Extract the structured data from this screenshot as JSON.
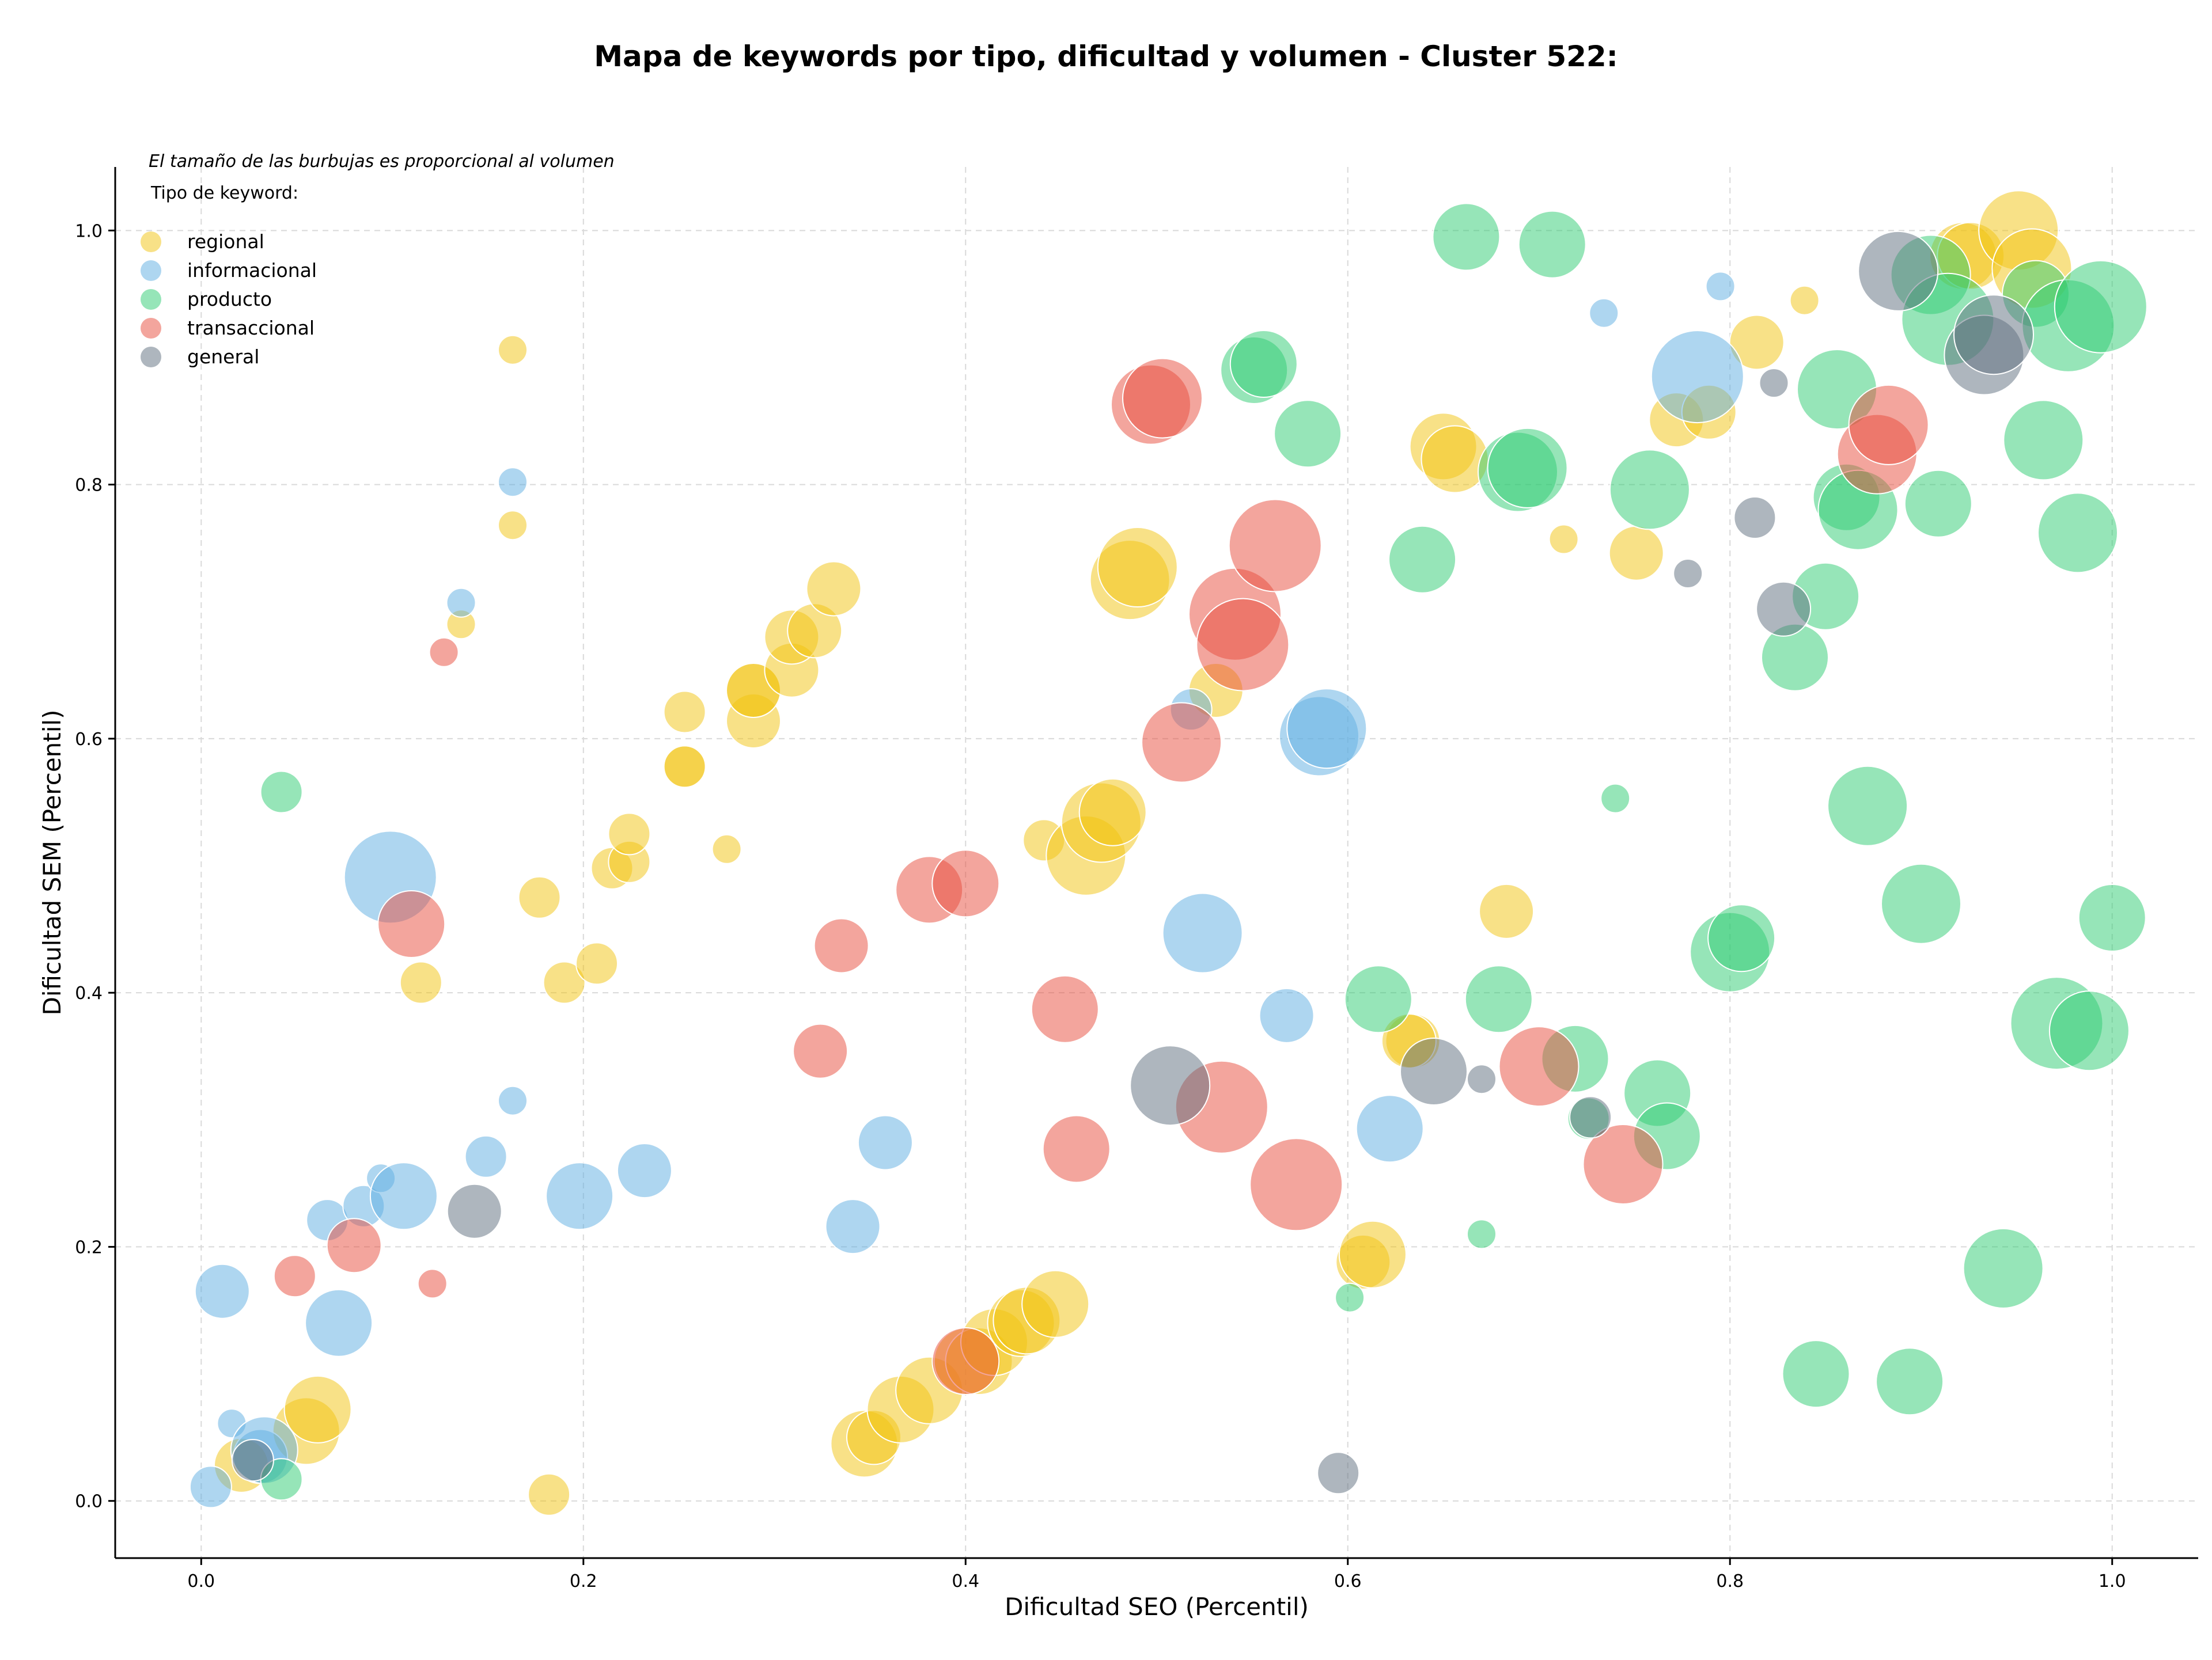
{
  "chart_data": {
    "type": "scatter",
    "title": "Mapa de keywords por tipo, dificultad y volumen - Cluster 522:",
    "xlabel": "Dificultad SEO (Percentil)",
    "ylabel": "Dificultad SEM (Percentil)",
    "xlim": [
      -0.045,
      1.045
    ],
    "ylim": [
      -0.045,
      1.05
    ],
    "xticks": [
      "0.0",
      "0.2",
      "0.4",
      "0.6",
      "0.8",
      "1.0"
    ],
    "yticks": [
      "0.0",
      "0.2",
      "0.4",
      "0.6",
      "0.8",
      "1.0"
    ],
    "grid": true,
    "note": "El tamaño de las burbujas es proporcional al volumen",
    "legend_title": "Tipo de keyword:",
    "legend_position": "top-left",
    "bubble_size_encoding": "volumen",
    "series": [
      {
        "name": "regional",
        "color": "#F1C40F",
        "points": [
          {
            "x": 0.021,
            "y": 0.028,
            "s": 3
          },
          {
            "x": 0.055,
            "y": 0.055,
            "s": 4
          },
          {
            "x": 0.061,
            "y": 0.072,
            "s": 4
          },
          {
            "x": 0.182,
            "y": 0.005,
            "s": 2
          },
          {
            "x": 0.115,
            "y": 0.408,
            "s": 2
          },
          {
            "x": 0.177,
            "y": 0.475,
            "s": 2
          },
          {
            "x": 0.19,
            "y": 0.408,
            "s": 2
          },
          {
            "x": 0.207,
            "y": 0.423,
            "s": 2
          },
          {
            "x": 0.215,
            "y": 0.498,
            "s": 2
          },
          {
            "x": 0.224,
            "y": 0.503,
            "s": 2
          },
          {
            "x": 0.224,
            "y": 0.525,
            "s": 2
          },
          {
            "x": 0.253,
            "y": 0.578,
            "s": 2
          },
          {
            "x": 0.253,
            "y": 0.578,
            "s": 2
          },
          {
            "x": 0.253,
            "y": 0.621,
            "s": 2
          },
          {
            "x": 0.275,
            "y": 0.513,
            "s": 1
          },
          {
            "x": 0.289,
            "y": 0.614,
            "s": 3
          },
          {
            "x": 0.289,
            "y": 0.638,
            "s": 3
          },
          {
            "x": 0.289,
            "y": 0.638,
            "s": 3
          },
          {
            "x": 0.309,
            "y": 0.654,
            "s": 3
          },
          {
            "x": 0.309,
            "y": 0.68,
            "s": 3
          },
          {
            "x": 0.321,
            "y": 0.685,
            "s": 3
          },
          {
            "x": 0.331,
            "y": 0.718,
            "s": 3
          },
          {
            "x": 0.136,
            "y": 0.69,
            "s": 1
          },
          {
            "x": 0.163,
            "y": 0.768,
            "s": 1
          },
          {
            "x": 0.163,
            "y": 0.906,
            "s": 1
          },
          {
            "x": 0.347,
            "y": 0.045,
            "s": 4
          },
          {
            "x": 0.352,
            "y": 0.05,
            "s": 3
          },
          {
            "x": 0.366,
            "y": 0.072,
            "s": 4
          },
          {
            "x": 0.381,
            "y": 0.087,
            "s": 4
          },
          {
            "x": 0.401,
            "y": 0.11,
            "s": 4
          },
          {
            "x": 0.407,
            "y": 0.11,
            "s": 4
          },
          {
            "x": 0.415,
            "y": 0.125,
            "s": 4
          },
          {
            "x": 0.429,
            "y": 0.14,
            "s": 4
          },
          {
            "x": 0.432,
            "y": 0.142,
            "s": 4
          },
          {
            "x": 0.447,
            "y": 0.155,
            "s": 4
          },
          {
            "x": 0.441,
            "y": 0.52,
            "s": 2
          },
          {
            "x": 0.463,
            "y": 0.508,
            "s": 5
          },
          {
            "x": 0.471,
            "y": 0.534,
            "s": 5
          },
          {
            "x": 0.477,
            "y": 0.542,
            "s": 4
          },
          {
            "x": 0.486,
            "y": 0.725,
            "s": 5
          },
          {
            "x": 0.49,
            "y": 0.735,
            "s": 5
          },
          {
            "x": 0.531,
            "y": 0.638,
            "s": 3
          },
          {
            "x": 0.608,
            "y": 0.188,
            "s": 3
          },
          {
            "x": 0.613,
            "y": 0.194,
            "s": 4
          },
          {
            "x": 0.634,
            "y": 0.362,
            "s": 3
          },
          {
            "x": 0.632,
            "y": 0.362,
            "s": 3
          },
          {
            "x": 0.65,
            "y": 0.83,
            "s": 4
          },
          {
            "x": 0.656,
            "y": 0.82,
            "s": 4
          },
          {
            "x": 0.683,
            "y": 0.464,
            "s": 3
          },
          {
            "x": 0.713,
            "y": 0.757,
            "s": 1
          },
          {
            "x": 0.751,
            "y": 0.746,
            "s": 3
          },
          {
            "x": 0.772,
            "y": 0.851,
            "s": 3
          },
          {
            "x": 0.789,
            "y": 0.857,
            "s": 3
          },
          {
            "x": 0.814,
            "y": 0.912,
            "s": 3
          },
          {
            "x": 0.839,
            "y": 0.945,
            "s": 1
          },
          {
            "x": 0.922,
            "y": 0.98,
            "s": 4
          },
          {
            "x": 0.926,
            "y": 0.98,
            "s": 4
          },
          {
            "x": 0.951,
            "y": 1.0,
            "s": 5
          },
          {
            "x": 0.958,
            "y": 0.97,
            "s": 5
          }
        ]
      },
      {
        "name": "informacional",
        "color": "#5DADE2",
        "points": [
          {
            "x": 0.005,
            "y": 0.011,
            "s": 2
          },
          {
            "x": 0.011,
            "y": 0.165,
            "s": 3
          },
          {
            "x": 0.016,
            "y": 0.061,
            "s": 1
          },
          {
            "x": 0.031,
            "y": 0.035,
            "s": 3
          },
          {
            "x": 0.033,
            "y": 0.04,
            "s": 4
          },
          {
            "x": 0.066,
            "y": 0.221,
            "s": 2
          },
          {
            "x": 0.072,
            "y": 0.14,
            "s": 4
          },
          {
            "x": 0.085,
            "y": 0.232,
            "s": 2
          },
          {
            "x": 0.094,
            "y": 0.254,
            "s": 1
          },
          {
            "x": 0.099,
            "y": 0.491,
            "s": 6
          },
          {
            "x": 0.106,
            "y": 0.24,
            "s": 4
          },
          {
            "x": 0.136,
            "y": 0.707,
            "s": 1
          },
          {
            "x": 0.149,
            "y": 0.271,
            "s": 2
          },
          {
            "x": 0.163,
            "y": 0.315,
            "s": 1
          },
          {
            "x": 0.163,
            "y": 0.802,
            "s": 1
          },
          {
            "x": 0.198,
            "y": 0.24,
            "s": 4
          },
          {
            "x": 0.232,
            "y": 0.26,
            "s": 3
          },
          {
            "x": 0.341,
            "y": 0.216,
            "s": 3
          },
          {
            "x": 0.358,
            "y": 0.282,
            "s": 3
          },
          {
            "x": 0.518,
            "y": 0.623,
            "s": 2
          },
          {
            "x": 0.524,
            "y": 0.447,
            "s": 5
          },
          {
            "x": 0.568,
            "y": 0.382,
            "s": 3
          },
          {
            "x": 0.585,
            "y": 0.602,
            "s": 5
          },
          {
            "x": 0.589,
            "y": 0.608,
            "s": 5
          },
          {
            "x": 0.622,
            "y": 0.293,
            "s": 4
          },
          {
            "x": 0.734,
            "y": 0.935,
            "s": 1
          },
          {
            "x": 0.783,
            "y": 0.885,
            "s": 6
          },
          {
            "x": 0.795,
            "y": 0.956,
            "s": 1
          }
        ]
      },
      {
        "name": "producto",
        "color": "#2ECC71",
        "points": [
          {
            "x": 0.042,
            "y": 0.017,
            "s": 2
          },
          {
            "x": 0.042,
            "y": 0.558,
            "s": 2
          },
          {
            "x": 0.551,
            "y": 0.89,
            "s": 4
          },
          {
            "x": 0.556,
            "y": 0.895,
            "s": 4
          },
          {
            "x": 0.579,
            "y": 0.84,
            "s": 4
          },
          {
            "x": 0.601,
            "y": 0.16,
            "s": 1
          },
          {
            "x": 0.616,
            "y": 0.395,
            "s": 4
          },
          {
            "x": 0.639,
            "y": 0.741,
            "s": 4
          },
          {
            "x": 0.662,
            "y": 0.995,
            "s": 4
          },
          {
            "x": 0.67,
            "y": 0.21,
            "s": 1
          },
          {
            "x": 0.679,
            "y": 0.395,
            "s": 4
          },
          {
            "x": 0.689,
            "y": 0.81,
            "s": 5
          },
          {
            "x": 0.694,
            "y": 0.813,
            "s": 5
          },
          {
            "x": 0.707,
            "y": 0.989,
            "s": 4
          },
          {
            "x": 0.719,
            "y": 0.348,
            "s": 4
          },
          {
            "x": 0.726,
            "y": 0.301,
            "s": 2
          },
          {
            "x": 0.74,
            "y": 0.553,
            "s": 1
          },
          {
            "x": 0.758,
            "y": 0.796,
            "s": 5
          },
          {
            "x": 0.762,
            "y": 0.321,
            "s": 4
          },
          {
            "x": 0.767,
            "y": 0.287,
            "s": 4
          },
          {
            "x": 0.8,
            "y": 0.432,
            "s": 5
          },
          {
            "x": 0.806,
            "y": 0.443,
            "s": 4
          },
          {
            "x": 0.834,
            "y": 0.664,
            "s": 4
          },
          {
            "x": 0.845,
            "y": 0.1,
            "s": 4
          },
          {
            "x": 0.85,
            "y": 0.712,
            "s": 4
          },
          {
            "x": 0.856,
            "y": 0.875,
            "s": 5
          },
          {
            "x": 0.861,
            "y": 0.79,
            "s": 4
          },
          {
            "x": 0.867,
            "y": 0.78,
            "s": 5
          },
          {
            "x": 0.872,
            "y": 0.547,
            "s": 5
          },
          {
            "x": 0.894,
            "y": 0.094,
            "s": 4
          },
          {
            "x": 0.9,
            "y": 0.47,
            "s": 5
          },
          {
            "x": 0.909,
            "y": 0.785,
            "s": 4
          },
          {
            "x": 0.905,
            "y": 0.965,
            "s": 5
          },
          {
            "x": 0.914,
            "y": 0.93,
            "s": 6
          },
          {
            "x": 0.943,
            "y": 0.183,
            "s": 5
          },
          {
            "x": 0.96,
            "y": 0.95,
            "s": 4
          },
          {
            "x": 0.964,
            "y": 0.835,
            "s": 5
          },
          {
            "x": 0.971,
            "y": 0.376,
            "s": 6
          },
          {
            "x": 0.977,
            "y": 0.925,
            "s": 6
          },
          {
            "x": 0.982,
            "y": 0.762,
            "s": 5
          },
          {
            "x": 0.988,
            "y": 0.37,
            "s": 5
          },
          {
            "x": 0.994,
            "y": 0.94,
            "s": 6
          },
          {
            "x": 1.0,
            "y": 0.459,
            "s": 4
          }
        ]
      },
      {
        "name": "transaccional",
        "color": "#E74C3C",
        "points": [
          {
            "x": 0.049,
            "y": 0.177,
            "s": 2
          },
          {
            "x": 0.08,
            "y": 0.201,
            "s": 3
          },
          {
            "x": 0.11,
            "y": 0.454,
            "s": 4
          },
          {
            "x": 0.121,
            "y": 0.171,
            "s": 1
          },
          {
            "x": 0.127,
            "y": 0.668,
            "s": 1
          },
          {
            "x": 0.324,
            "y": 0.354,
            "s": 3
          },
          {
            "x": 0.335,
            "y": 0.437,
            "s": 3
          },
          {
            "x": 0.381,
            "y": 0.481,
            "s": 4
          },
          {
            "x": 0.4,
            "y": 0.486,
            "s": 4
          },
          {
            "x": 0.4,
            "y": 0.11,
            "s": 4
          },
          {
            "x": 0.452,
            "y": 0.387,
            "s": 4
          },
          {
            "x": 0.458,
            "y": 0.277,
            "s": 4
          },
          {
            "x": 0.497,
            "y": 0.863,
            "s": 5
          },
          {
            "x": 0.503,
            "y": 0.868,
            "s": 5
          },
          {
            "x": 0.513,
            "y": 0.597,
            "s": 5
          },
          {
            "x": 0.534,
            "y": 0.31,
            "s": 6
          },
          {
            "x": 0.541,
            "y": 0.698,
            "s": 6
          },
          {
            "x": 0.545,
            "y": 0.674,
            "s": 6
          },
          {
            "x": 0.562,
            "y": 0.752,
            "s": 6
          },
          {
            "x": 0.573,
            "y": 0.249,
            "s": 6
          },
          {
            "x": 0.7,
            "y": 0.342,
            "s": 5
          },
          {
            "x": 0.744,
            "y": 0.265,
            "s": 5
          },
          {
            "x": 0.877,
            "y": 0.824,
            "s": 5
          },
          {
            "x": 0.883,
            "y": 0.847,
            "s": 5
          }
        ]
      },
      {
        "name": "general",
        "color": "#5D6D7E",
        "points": [
          {
            "x": 0.027,
            "y": 0.032,
            "s": 2
          },
          {
            "x": 0.143,
            "y": 0.228,
            "s": 3
          },
          {
            "x": 0.507,
            "y": 0.327,
            "s": 5
          },
          {
            "x": 0.595,
            "y": 0.022,
            "s": 2
          },
          {
            "x": 0.645,
            "y": 0.338,
            "s": 4
          },
          {
            "x": 0.67,
            "y": 0.332,
            "s": 1
          },
          {
            "x": 0.727,
            "y": 0.302,
            "s": 2
          },
          {
            "x": 0.778,
            "y": 0.73,
            "s": 1
          },
          {
            "x": 0.813,
            "y": 0.774,
            "s": 2
          },
          {
            "x": 0.823,
            "y": 0.88,
            "s": 1
          },
          {
            "x": 0.828,
            "y": 0.702,
            "s": 3
          },
          {
            "x": 0.888,
            "y": 0.968,
            "s": 5
          },
          {
            "x": 0.933,
            "y": 0.902,
            "s": 5
          },
          {
            "x": 0.938,
            "y": 0.918,
            "s": 5
          }
        ]
      }
    ]
  }
}
